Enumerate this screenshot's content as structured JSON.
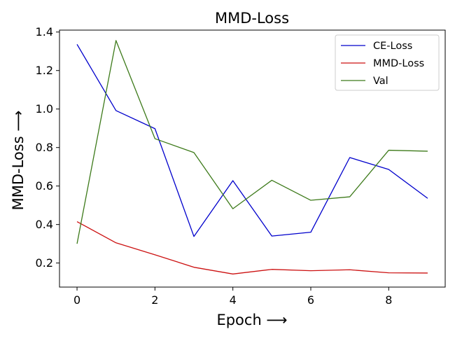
{
  "chart_data": {
    "type": "line",
    "title": "MMD-Loss",
    "xlabel": "Epoch ⟶",
    "ylabel": "MMD-Loss ⟶",
    "x": [
      0,
      1,
      2,
      3,
      4,
      5,
      6,
      7,
      8,
      9
    ],
    "xlim": [
      -0.45,
      9.45
    ],
    "ylim": [
      0.075,
      1.41
    ],
    "xticks": [
      0,
      2,
      4,
      6,
      8
    ],
    "yticks": [
      0.2,
      0.4,
      0.6,
      0.8,
      1.0,
      1.2,
      1.4
    ],
    "xtick_labels": [
      "0",
      "2",
      "4",
      "6",
      "8"
    ],
    "ytick_labels": [
      "0.2",
      "0.4",
      "0.6",
      "0.8",
      "1.0",
      "1.2",
      "1.4"
    ],
    "grid": false,
    "legend_position": "top-right",
    "series": [
      {
        "name": "CE-Loss",
        "color": "#0000cc",
        "values": [
          1.336,
          0.992,
          0.898,
          0.338,
          0.628,
          0.34,
          0.36,
          0.748,
          0.686,
          0.536
        ]
      },
      {
        "name": "MMD-Loss",
        "color": "#cc1111",
        "values": [
          0.415,
          0.305,
          0.243,
          0.178,
          0.143,
          0.167,
          0.16,
          0.165,
          0.149,
          0.148
        ]
      },
      {
        "name": "Val",
        "color": "#3d7a1a",
        "values": [
          0.3,
          1.356,
          0.846,
          0.774,
          0.482,
          0.63,
          0.526,
          0.544,
          0.786,
          0.781
        ]
      }
    ]
  }
}
